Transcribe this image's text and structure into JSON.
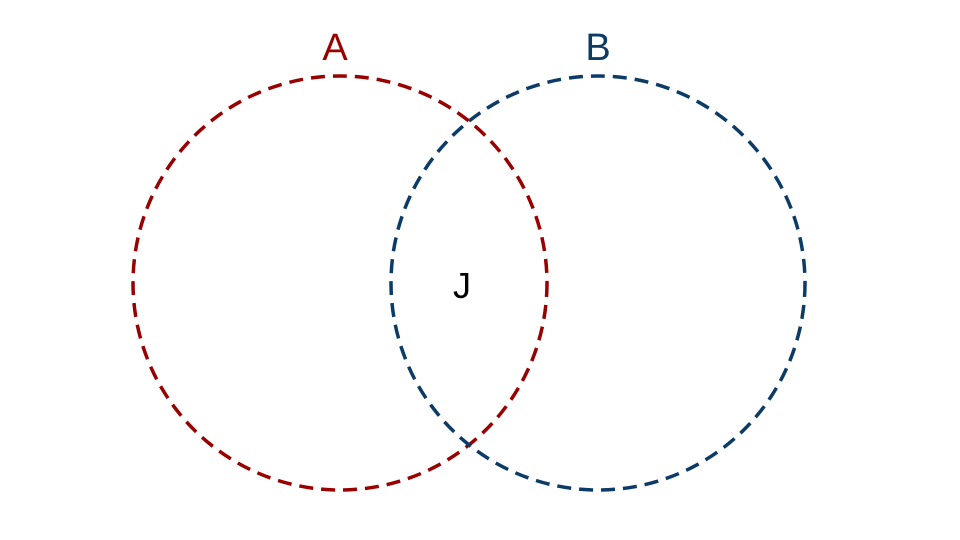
{
  "diagram": {
    "type": "venn",
    "sets": [
      {
        "id": "set-a",
        "label": "A",
        "color": "#990000",
        "line_style": "dashed"
      },
      {
        "id": "set-b",
        "label": "B",
        "color": "#0b3b66",
        "line_style": "dashed"
      }
    ],
    "intersection": {
      "label": "J",
      "color": "#000000"
    }
  }
}
